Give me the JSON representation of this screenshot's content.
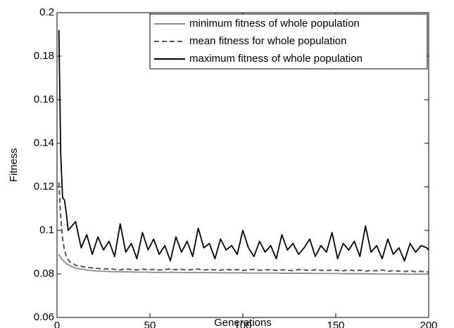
{
  "chart_data": {
    "type": "line",
    "xlabel": "Generations",
    "ylabel": "Fitness",
    "xlim": [
      0,
      200
    ],
    "ylim": [
      0.06,
      0.2
    ],
    "xticks": [
      0,
      50,
      100,
      150,
      200
    ],
    "yticks": [
      0.06,
      0.08,
      0.1,
      0.12,
      0.14,
      0.16,
      0.18,
      0.2
    ],
    "legend": "upper right",
    "x": [
      1,
      2,
      3,
      4,
      5,
      6,
      7,
      8,
      9,
      10,
      13,
      16,
      19,
      22,
      25,
      28,
      31,
      34,
      37,
      40,
      43,
      46,
      49,
      52,
      55,
      58,
      61,
      64,
      67,
      70,
      73,
      76,
      79,
      82,
      85,
      88,
      91,
      94,
      97,
      100,
      103,
      106,
      109,
      112,
      115,
      118,
      121,
      124,
      127,
      130,
      133,
      136,
      139,
      142,
      145,
      148,
      151,
      154,
      157,
      160,
      163,
      166,
      169,
      172,
      175,
      178,
      181,
      184,
      187,
      190,
      193,
      196,
      199,
      200
    ],
    "series": [
      {
        "name": "minimum fitness of whole population",
        "color": "#8c8c8c",
        "dash": "solid",
        "values": [
          0.089,
          0.0875,
          0.0865,
          0.0855,
          0.0848,
          0.0842,
          0.0837,
          0.0833,
          0.083,
          0.0827,
          0.0822,
          0.0818,
          0.0815,
          0.0813,
          0.0812,
          0.0811,
          0.081,
          0.081,
          0.0809,
          0.0809,
          0.0808,
          0.0808,
          0.0808,
          0.0807,
          0.0807,
          0.0807,
          0.0807,
          0.0807,
          0.0806,
          0.0806,
          0.0806,
          0.0806,
          0.0806,
          0.0806,
          0.0805,
          0.0805,
          0.0805,
          0.0805,
          0.0805,
          0.0805,
          0.0804,
          0.0804,
          0.0804,
          0.0804,
          0.0804,
          0.0804,
          0.0803,
          0.0803,
          0.0803,
          0.0803,
          0.0803,
          0.0803,
          0.0802,
          0.0802,
          0.0802,
          0.0802,
          0.0802,
          0.0801,
          0.0801,
          0.0801,
          0.0801,
          0.0801,
          0.08,
          0.08,
          0.08,
          0.08,
          0.08,
          0.08,
          0.0799,
          0.0799,
          0.0799,
          0.0799,
          0.0799,
          0.0799
        ]
      },
      {
        "name": "mean fitness for whole population",
        "color": "#555555",
        "dash": "dashed",
        "values": [
          0.122,
          0.106,
          0.096,
          0.091,
          0.088,
          0.0865,
          0.0855,
          0.085,
          0.0845,
          0.084,
          0.0835,
          0.083,
          0.0828,
          0.0825,
          0.0822,
          0.0824,
          0.0821,
          0.0819,
          0.0823,
          0.082,
          0.0818,
          0.0822,
          0.0819,
          0.0821,
          0.0818,
          0.082,
          0.0823,
          0.0819,
          0.0821,
          0.0817,
          0.082,
          0.0822,
          0.0818,
          0.082,
          0.0819,
          0.0817,
          0.0821,
          0.0818,
          0.082,
          0.0816,
          0.0819,
          0.0821,
          0.0817,
          0.0818,
          0.082,
          0.0816,
          0.0819,
          0.0817,
          0.0815,
          0.082,
          0.0818,
          0.0816,
          0.0819,
          0.0817,
          0.0815,
          0.0818,
          0.0816,
          0.0814,
          0.0819,
          0.0815,
          0.0817,
          0.0813,
          0.0816,
          0.0814,
          0.0818,
          0.0812,
          0.0815,
          0.0813,
          0.0811,
          0.0814,
          0.081,
          0.0812,
          0.0809,
          0.0808
        ]
      },
      {
        "name": "maximum fitness of whole population",
        "color": "#000000",
        "dash": "solid",
        "values": [
          0.192,
          0.135,
          0.115,
          0.114,
          0.108,
          0.1,
          0.101,
          0.102,
          0.103,
          0.104,
          0.092,
          0.098,
          0.089,
          0.097,
          0.091,
          0.095,
          0.088,
          0.103,
          0.09,
          0.094,
          0.087,
          0.099,
          0.091,
          0.096,
          0.089,
          0.093,
          0.086,
          0.097,
          0.09,
          0.095,
          0.088,
          0.101,
          0.092,
          0.094,
          0.087,
          0.096,
          0.091,
          0.093,
          0.089,
          0.1,
          0.092,
          0.088,
          0.095,
          0.09,
          0.093,
          0.087,
          0.098,
          0.091,
          0.094,
          0.089,
          0.092,
          0.096,
          0.088,
          0.093,
          0.09,
          0.099,
          0.087,
          0.094,
          0.091,
          0.095,
          0.088,
          0.102,
          0.09,
          0.093,
          0.087,
          0.096,
          0.089,
          0.092,
          0.086,
          0.094,
          0.09,
          0.093,
          0.092,
          0.091
        ]
      }
    ]
  }
}
